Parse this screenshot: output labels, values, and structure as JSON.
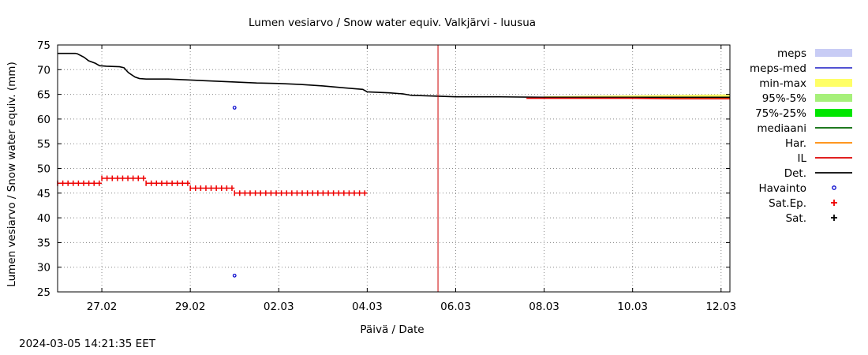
{
  "chart_data": {
    "type": "line",
    "title": "Lumen vesiarvo / Snow water equiv.  Valkjärvi - luusua",
    "xlabel": "Päivä / Date",
    "ylabel": "Lumen vesiarvo / Snow water equiv. (mm)",
    "xlim": [
      0,
      15.2
    ],
    "ylim": [
      25,
      75
    ],
    "grid": true,
    "x_unit": "days since 2024-02-26 00:00",
    "x_ticks": [
      {
        "value": 1,
        "label": "27.02"
      },
      {
        "value": 3,
        "label": "29.02"
      },
      {
        "value": 5,
        "label": "02.03"
      },
      {
        "value": 7,
        "label": "04.03"
      },
      {
        "value": 9,
        "label": "06.03"
      },
      {
        "value": 11,
        "label": "08.03"
      },
      {
        "value": 13,
        "label": "10.03"
      },
      {
        "value": 15,
        "label": "12.03"
      }
    ],
    "y_ticks": [
      25,
      30,
      35,
      40,
      45,
      50,
      55,
      60,
      65,
      70,
      75
    ],
    "now_line_x": 8.6,
    "legend_position": "right",
    "legend": [
      {
        "label": "meps",
        "style": "band",
        "color": "#c8ccf5"
      },
      {
        "label": "meps-med",
        "style": "line",
        "color": "#3a3acc"
      },
      {
        "label": "min-max",
        "style": "band",
        "color": "#ffff66"
      },
      {
        "label": "95%-5%",
        "style": "band",
        "color": "#a6f07a"
      },
      {
        "label": "75%-25%",
        "style": "band",
        "color": "#00e600"
      },
      {
        "label": "mediaani",
        "style": "line",
        "color": "#006600"
      },
      {
        "label": "Har.",
        "style": "line",
        "color": "#ff8800"
      },
      {
        "label": "IL",
        "style": "line",
        "color": "#dd0000"
      },
      {
        "label": "Det.",
        "style": "line",
        "color": "#000000"
      },
      {
        "label": "Havainto",
        "style": "circle",
        "color": "#0000cc"
      },
      {
        "label": "Sat.Ep.",
        "style": "plus",
        "color": "#ee0000"
      },
      {
        "label": "Sat.",
        "style": "plus",
        "color": "#000000"
      }
    ],
    "series": [
      {
        "name": "Det.",
        "type": "line",
        "color": "#000000",
        "x": [
          0,
          0.4,
          0.45,
          0.6,
          0.7,
          0.85,
          0.95,
          1.1,
          1.4,
          1.5,
          1.6,
          1.75,
          1.85,
          2.0,
          2.5,
          3.0,
          4.0,
          4.5,
          5.0,
          5.5,
          6.0,
          6.5,
          6.9,
          7.0,
          7.5,
          7.8,
          8.0,
          9.0,
          10.0,
          11.0,
          12.0,
          13.0,
          14.0,
          15.2
        ],
        "y": [
          73.3,
          73.3,
          73.2,
          72.5,
          71.8,
          71.3,
          70.8,
          70.7,
          70.6,
          70.4,
          69.4,
          68.5,
          68.2,
          68.1,
          68.1,
          67.9,
          67.5,
          67.3,
          67.2,
          67.0,
          66.7,
          66.3,
          66.0,
          65.5,
          65.3,
          65.1,
          64.8,
          64.5,
          64.5,
          64.4,
          64.4,
          64.4,
          64.4,
          64.4
        ]
      },
      {
        "name": "IL",
        "type": "line",
        "color": "#dd0000",
        "x": [
          10.6,
          12.0,
          13.0,
          14.0,
          15.2
        ],
        "y": [
          64.2,
          64.2,
          64.2,
          64.1,
          64.1
        ]
      },
      {
        "name": "min-max",
        "type": "band",
        "color": "#ffff66",
        "x": [
          11.0,
          13.0,
          15.2
        ],
        "low": [
          64.2,
          64.2,
          64.2
        ],
        "high": [
          64.6,
          64.8,
          65.0
        ]
      },
      {
        "name": "Havainto",
        "type": "scatter",
        "color": "#0000cc",
        "x": [
          4.0,
          4.0
        ],
        "y": [
          62.3,
          28.3
        ]
      },
      {
        "name": "Sat.Ep.",
        "type": "step-plus",
        "color": "#ee0000",
        "segments": [
          {
            "x0": 0,
            "x1": 1.0,
            "y": 47
          },
          {
            "x0": 1.0,
            "x1": 2.0,
            "y": 48
          },
          {
            "x0": 2.0,
            "x1": 3.0,
            "y": 47
          },
          {
            "x0": 3.0,
            "x1": 4.0,
            "y": 46
          },
          {
            "x0": 4.0,
            "x1": 7.0,
            "y": 45
          }
        ]
      }
    ]
  },
  "footer": {
    "timestamp": "2024-03-05 14:21:35 EET"
  }
}
